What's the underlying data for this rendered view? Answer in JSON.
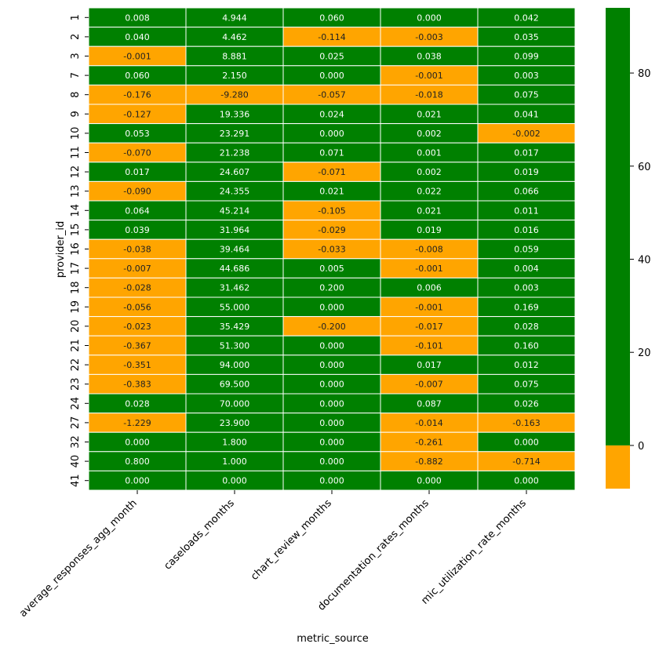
{
  "chart_data": {
    "type": "heatmap",
    "xlabel": "metric_source",
    "ylabel": "provider_id",
    "columns": [
      "average_responses_agg_month",
      "caseloads_months",
      "chart_review_months",
      "documentation_rates_months",
      "mic_utilization_rate_months"
    ],
    "rows": [
      "1",
      "2",
      "3",
      "7",
      "8",
      "9",
      "10",
      "11",
      "12",
      "13",
      "14",
      "15",
      "16",
      "17",
      "18",
      "19",
      "20",
      "21",
      "22",
      "23",
      "24",
      "27",
      "32",
      "40",
      "41"
    ],
    "values": [
      [
        "0.008",
        "4.944",
        "0.060",
        "0.000",
        "0.042"
      ],
      [
        "0.040",
        "4.462",
        "-0.114",
        "-0.003",
        "0.035"
      ],
      [
        "-0.001",
        "8.881",
        "0.025",
        "0.038",
        "0.099"
      ],
      [
        "0.060",
        "2.150",
        "0.000",
        "-0.001",
        "0.003"
      ],
      [
        "-0.176",
        "-9.280",
        "-0.057",
        "-0.018",
        "0.075"
      ],
      [
        "-0.127",
        "19.336",
        "0.024",
        "0.021",
        "0.041"
      ],
      [
        "0.053",
        "23.291",
        "0.000",
        "0.002",
        "-0.002"
      ],
      [
        "-0.070",
        "21.238",
        "0.071",
        "0.001",
        "0.017"
      ],
      [
        "0.017",
        "24.607",
        "-0.071",
        "0.002",
        "0.019"
      ],
      [
        "-0.090",
        "24.355",
        "0.021",
        "0.022",
        "0.066"
      ],
      [
        "0.064",
        "45.214",
        "-0.105",
        "0.021",
        "0.011"
      ],
      [
        "0.039",
        "31.964",
        "-0.029",
        "0.019",
        "0.016"
      ],
      [
        "-0.038",
        "39.464",
        "-0.033",
        "-0.008",
        "0.059"
      ],
      [
        "-0.007",
        "44.686",
        "0.005",
        "-0.001",
        "0.004"
      ],
      [
        "-0.028",
        "31.462",
        "0.200",
        "0.006",
        "0.003"
      ],
      [
        "-0.056",
        "55.000",
        "0.000",
        "-0.001",
        "0.169"
      ],
      [
        "-0.023",
        "35.429",
        "-0.200",
        "-0.017",
        "0.028"
      ],
      [
        "-0.367",
        "51.300",
        "0.000",
        "-0.101",
        "0.160"
      ],
      [
        "-0.351",
        "94.000",
        "0.000",
        "0.017",
        "0.012"
      ],
      [
        "-0.383",
        "69.500",
        "0.000",
        "-0.007",
        "0.075"
      ],
      [
        "0.028",
        "70.000",
        "0.000",
        "0.087",
        "0.026"
      ],
      [
        "-1.229",
        "23.900",
        "0.000",
        "-0.014",
        "-0.163"
      ],
      [
        "0.000",
        "1.800",
        "0.000",
        "-0.261",
        "0.000"
      ],
      [
        "0.800",
        "1.000",
        "0.000",
        "-0.882",
        "-0.714"
      ],
      [
        "0.000",
        "0.000",
        "0.000",
        "0.000",
        "0.000"
      ]
    ],
    "colors": {
      "positive": "#008000",
      "negative": "#ffa500",
      "grid": "#ffffff"
    },
    "colorbar": {
      "ticks": [
        "0",
        "20",
        "40",
        "60",
        "80"
      ],
      "range": [
        -9.28,
        94.0
      ]
    }
  }
}
